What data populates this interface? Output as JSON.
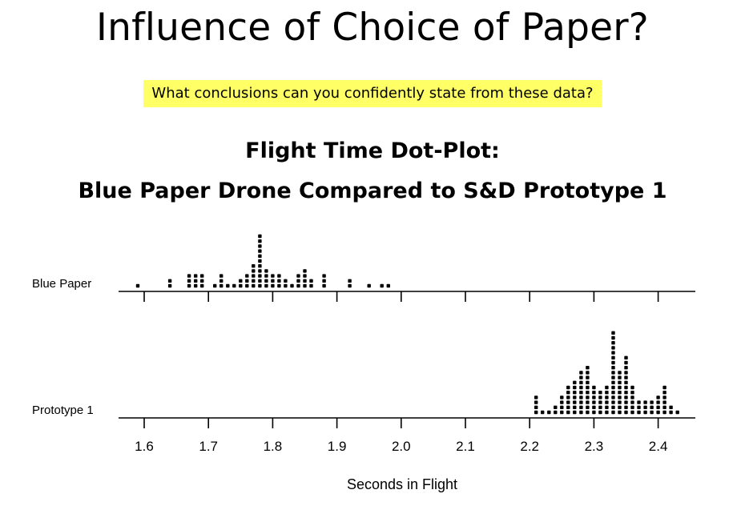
{
  "slide": {
    "title": "Influence of Choice of Paper?",
    "question": "What conclusions can you confidently state from these data?"
  },
  "chart_data": {
    "type": "scatter",
    "subtype": "dot-plot",
    "title_lines": [
      "Flight Time Dot-Plot:",
      "Blue Paper Drone Compared to S&D Prototype 1"
    ],
    "xlabel": "Seconds in Flight",
    "xlim": [
      1.575,
      2.44
    ],
    "x_ticks": [
      1.6,
      1.7,
      1.8,
      1.9,
      2.0,
      2.1,
      2.2,
      2.3,
      2.4
    ],
    "x_tick_labels": [
      "1.6",
      "1.7",
      "1.8",
      "1.9",
      "2.0",
      "2.1",
      "2.2",
      "2.3",
      "2.4"
    ],
    "bin_width": 0.01,
    "series": [
      {
        "name": "Blue Paper",
        "x": [
          1.59,
          1.64,
          1.67,
          1.68,
          1.69,
          1.71,
          1.72,
          1.73,
          1.74,
          1.75,
          1.76,
          1.77,
          1.78,
          1.79,
          1.8,
          1.81,
          1.82,
          1.83,
          1.84,
          1.85,
          1.86,
          1.88,
          1.92,
          1.95,
          1.97,
          1.98
        ],
        "counts": [
          1,
          2,
          3,
          3,
          3,
          1,
          3,
          1,
          1,
          2,
          3,
          5,
          11,
          4,
          3,
          3,
          2,
          1,
          3,
          4,
          2,
          3,
          2,
          1,
          1,
          1
        ]
      },
      {
        "name": "Prototype 1",
        "x": [
          2.21,
          2.22,
          2.23,
          2.24,
          2.25,
          2.26,
          2.27,
          2.28,
          2.29,
          2.3,
          2.31,
          2.32,
          2.33,
          2.34,
          2.35,
          2.36,
          2.37,
          2.38,
          2.39,
          2.4,
          2.41,
          2.42,
          2.43
        ],
        "counts": [
          4,
          1,
          1,
          2,
          4,
          6,
          7,
          9,
          10,
          6,
          5,
          6,
          17,
          9,
          12,
          6,
          3,
          3,
          3,
          4,
          6,
          2,
          1
        ]
      }
    ]
  }
}
